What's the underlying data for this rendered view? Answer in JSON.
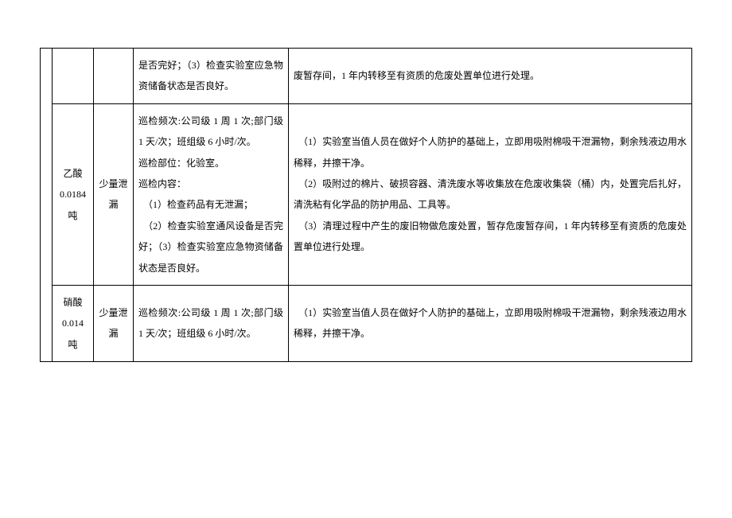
{
  "table": {
    "rows": [
      {
        "substance": "",
        "type": "",
        "inspection": "是否完好；（3）检查实验室应急物资储备状态是否良好。",
        "measures": "废暂存间，1 年内转移至有资质的危废处置单位进行处理。"
      },
      {
        "substance": "乙酸 0.0184 吨",
        "type": "少量泄漏",
        "inspection": "巡检频次:公司级 1 周 1 次;部门级 1 天/次；班组级 6 小时/次。\n巡检部位：化验室。\n巡检内容：\n　（1）检查药品有无泄漏；\n　（2）检查实验室通风设备是否完好；（3）检查实验室应急物资储备状态是否良好。",
        "measures": "　（1）实验室当值人员在做好个人防护的基础上，立即用吸附棉吸干泄漏物，剩余残液边用水稀释，并擦干净。\n　（2）吸附过的棉片、破损容器、清洗废水等收集放在危废收集袋（桶）内，处置完后扎好，清洗粘有化学品的防护用品、工具等。\n　（3）清理过程中产生的废旧物做危废处置，暂存危废暂存间，1 年内转移至有资质的危废处置单位进行处理。"
      },
      {
        "substance": "硝酸 0.014 吨",
        "type": "少量泄漏",
        "inspection": "巡检频次:公司级 1 周 1 次;部门级 1 天/次；班组级 6 小时/次。",
        "measures": "　（1）实验室当值人员在做好个人防护的基础上，立即用吸附棉吸干泄漏物，剩余残液边用水稀释，并擦干净。"
      }
    ]
  }
}
